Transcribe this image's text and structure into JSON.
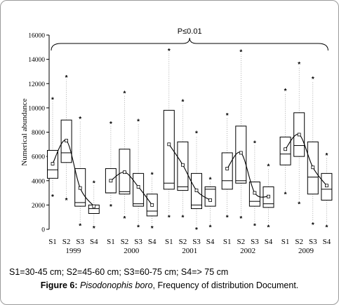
{
  "chart_data": {
    "type": "boxplot",
    "ylabel": "Numerical abundance",
    "ylim": [
      0,
      16000
    ],
    "yticks": [
      0,
      2000,
      4000,
      6000,
      8000,
      10000,
      12000,
      14000,
      16000
    ],
    "significance": "P≤0.01",
    "categories": [
      "S1",
      "S2",
      "S3",
      "S4",
      "S1",
      "S2",
      "S3",
      "S4",
      "S1",
      "S2",
      "S3",
      "S4",
      "S1",
      "S2",
      "S3",
      "S4",
      "S1",
      "S2",
      "S3",
      "S4"
    ],
    "groups": [
      "1999",
      "2000",
      "2001",
      "2002",
      "2009"
    ],
    "boxes": [
      {
        "group": "1999",
        "cls": "S1",
        "q1": 4200,
        "median": 4900,
        "q3": 6500,
        "mean": 5400,
        "max": 10700,
        "min": 2800
      },
      {
        "group": "1999",
        "cls": "S2",
        "q1": 5500,
        "median": 6300,
        "q3": 9000,
        "mean": 7300,
        "max": 12500,
        "min": 2500
      },
      {
        "group": "1999",
        "cls": "S3",
        "q1": 1900,
        "median": 2200,
        "q3": 5000,
        "mean": 3400,
        "max": 9100,
        "min": 400
      },
      {
        "group": "1999",
        "cls": "S4",
        "q1": 1300,
        "median": 1700,
        "q3": 2000,
        "mean": 1900,
        "max": 3800,
        "min": 200
      },
      {
        "group": "2000",
        "cls": "S1",
        "q1": 3000,
        "median": 3000,
        "q3": 5000,
        "mean": 4000,
        "max": 8700,
        "min": 2000
      },
      {
        "group": "2000",
        "cls": "S2",
        "q1": 2900,
        "median": 3100,
        "q3": 6600,
        "mean": 4700,
        "max": 11200,
        "min": 1000
      },
      {
        "group": "2000",
        "cls": "S3",
        "q1": 1900,
        "median": 2100,
        "q3": 4600,
        "mean": 3500,
        "max": 8900,
        "min": 300
      },
      {
        "group": "2000",
        "cls": "S4",
        "q1": 1100,
        "median": 1500,
        "q3": 2900,
        "mean": 2000,
        "max": 4500,
        "min": 200
      },
      {
        "group": "2001",
        "cls": "S1",
        "q1": 3300,
        "median": 3800,
        "q3": 9800,
        "mean": 7000,
        "max": 14700,
        "min": 1100
      },
      {
        "group": "2001",
        "cls": "S2",
        "q1": 3200,
        "median": 3500,
        "q3": 7200,
        "mean": 5300,
        "max": 10500,
        "min": 1100
      },
      {
        "group": "2001",
        "cls": "S3",
        "q1": 1700,
        "median": 2000,
        "q3": 4600,
        "mean": 3200,
        "max": 7900,
        "min": 100
      },
      {
        "group": "2001",
        "cls": "S4",
        "q1": 1900,
        "median": 3300,
        "q3": 3500,
        "mean": 2400,
        "max": 4100,
        "min": 300
      },
      {
        "group": "2002",
        "cls": "S1",
        "q1": 3300,
        "median": 4000,
        "q3": 6300,
        "mean": 5000,
        "max": 9400,
        "min": 1100
      },
      {
        "group": "2002",
        "cls": "S2",
        "q1": 3800,
        "median": 4000,
        "q3": 8500,
        "mean": 6300,
        "max": 14600,
        "min": 1000
      },
      {
        "group": "2002",
        "cls": "S3",
        "q1": 1900,
        "median": 2300,
        "q3": 3900,
        "mean": 3000,
        "max": 7100,
        "min": 400
      },
      {
        "group": "2002",
        "cls": "S4",
        "q1": 1800,
        "median": 2100,
        "q3": 3500,
        "mean": 2700,
        "max": 5200,
        "min": 300
      },
      {
        "group": "2009",
        "cls": "S1",
        "q1": 5300,
        "median": 6200,
        "q3": 7600,
        "mean": 6600,
        "max": 11400,
        "min": 3000
      },
      {
        "group": "2009",
        "cls": "S2",
        "q1": 6000,
        "median": 6900,
        "q3": 9600,
        "mean": 7800,
        "max": 13600,
        "min": 2200
      },
      {
        "group": "2009",
        "cls": "S3",
        "q1": 2900,
        "median": 4300,
        "q3": 7200,
        "mean": 5100,
        "max": 12400,
        "min": 500
      },
      {
        "group": "2009",
        "cls": "S4",
        "q1": 2400,
        "median": 3300,
        "q3": 4600,
        "mean": 3600,
        "max": 6100,
        "min": 300
      }
    ]
  },
  "legend_text": "S1=30-45 cm; S2=45-60 cm; S3=60-75 cm; S4=> 75 cm",
  "caption": {
    "label": "Figure 6:",
    "species": "Pisodonophis boro",
    "rest": ", Frequency of distribution Document."
  }
}
